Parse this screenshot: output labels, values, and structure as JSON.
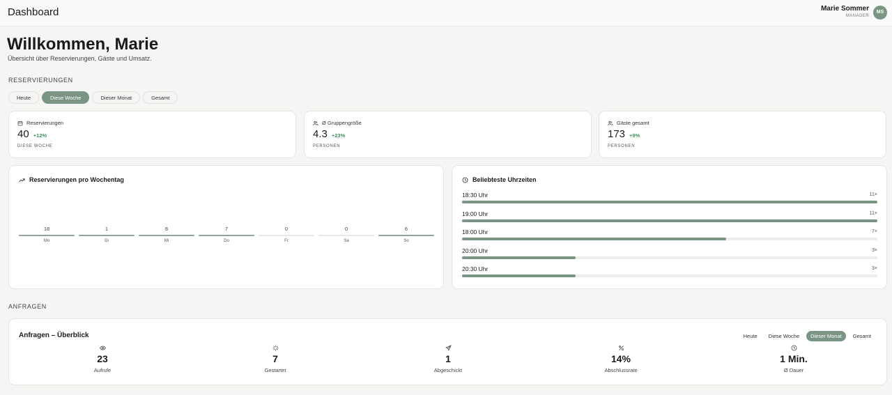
{
  "header": {
    "title": "Dashboard",
    "user_name": "Marie Sommer",
    "user_role": "MANAGER",
    "avatar_initials": "MS"
  },
  "welcome": {
    "title": "Willkommen, Marie",
    "subtitle": "Übersicht über Reservierungen, Gäste und Umsatz."
  },
  "reservations_section": {
    "label": "RESERVIERUNGEN",
    "filters": [
      "Heute",
      "Diese Woche",
      "Dieser Monat",
      "Gesamt"
    ],
    "active_filter": "Diese Woche"
  },
  "stats": [
    {
      "icon": "calendar-icon",
      "label": "Reservierungen",
      "value": "40",
      "delta": "+12%",
      "sub": "DIESE WOCHE"
    },
    {
      "icon": "users-icon",
      "label": "Ø Gruppengröße",
      "value": "4.3",
      "delta": "+23%",
      "sub": "PERSONEN"
    },
    {
      "icon": "users-icon",
      "label": "Gäste gesamt",
      "value": "173",
      "delta": "+9%",
      "sub": "PERSONEN"
    }
  ],
  "weekday_chart": {
    "title": "Reservierungen pro Wochentag",
    "icon": "trending-up-icon"
  },
  "chart_data": {
    "type": "bar",
    "categories": [
      "Mo",
      "Di",
      "Mi",
      "Do",
      "Fr",
      "Sa",
      "So"
    ],
    "values": [
      18,
      1,
      8,
      7,
      0,
      0,
      6
    ]
  },
  "popular_times": {
    "title": "Beliebteste Uhrzeiten",
    "icon": "clock-icon",
    "max": 11,
    "items": [
      {
        "label": "18:30 Uhr",
        "count": "11×",
        "value": 11
      },
      {
        "label": "19:00 Uhr",
        "count": "11×",
        "value": 11
      },
      {
        "label": "18:00 Uhr",
        "count": "7×",
        "value": 7
      },
      {
        "label": "20:00 Uhr",
        "count": "3×",
        "value": 3
      },
      {
        "label": "20:30 Uhr",
        "count": "3×",
        "value": 3
      }
    ]
  },
  "requests_section": {
    "label": "ANFRAGEN",
    "title": "Anfragen – Überblick",
    "filters": [
      "Heute",
      "Diese Woche",
      "Dieser Monat",
      "Gesamt"
    ],
    "active_filter": "Dieser Monat",
    "metrics": [
      {
        "icon": "eye-icon",
        "value": "23",
        "label": "Aufrufe"
      },
      {
        "icon": "sparkle-icon",
        "value": "7",
        "label": "Gestartet"
      },
      {
        "icon": "send-icon",
        "value": "1",
        "label": "Abgeschickt"
      },
      {
        "icon": "percent-icon",
        "value": "14%",
        "label": "Abschlussrate"
      },
      {
        "icon": "clock-icon",
        "value": "1 Min.",
        "label": "Ø Dauer"
      }
    ]
  },
  "colors": {
    "accent": "#7a9584",
    "positive": "#3f8f5c",
    "background": "#f5f5f4"
  }
}
